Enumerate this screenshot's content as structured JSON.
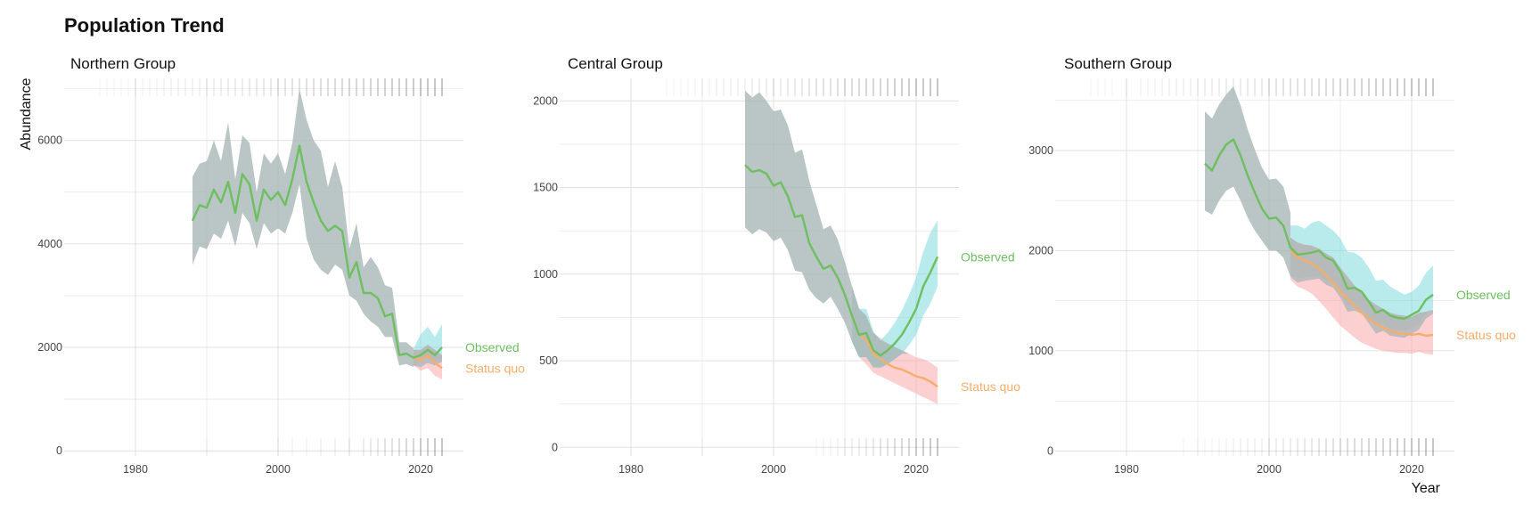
{
  "title": "Population Trend",
  "colors": {
    "observed": "#6dbf5f",
    "status_quo": "#f7ad6a",
    "observed_band": "#7fd9dd",
    "status_quo_band": "#f9aaaa",
    "common_band": "#a9b6b7",
    "grid": "#e0e0e0",
    "rug": "#555555"
  },
  "chart_data": [
    {
      "type": "area",
      "panel_title": "Northern Group",
      "ylabel": "Abundance",
      "xlabel": "",
      "xlim": [
        1970,
        2026
      ],
      "ylim": [
        -100,
        7200
      ],
      "x_ticks": [
        1980,
        2000,
        2020
      ],
      "y_ticks": [
        0,
        2000,
        4000,
        6000
      ],
      "grid": true,
      "end_labels": {
        "observed": "Observed",
        "status_quo": "Status quo"
      },
      "series": [
        {
          "name": "Observed",
          "x": [
            1988,
            1989,
            1990,
            1991,
            1992,
            1993,
            1994,
            1995,
            1996,
            1997,
            1998,
            1999,
            2000,
            2001,
            2002,
            2003,
            2004,
            2005,
            2006,
            2007,
            2008,
            2009,
            2010,
            2011,
            2012,
            2013,
            2014,
            2015,
            2016,
            2017,
            2018,
            2019,
            2020,
            2021,
            2022,
            2023
          ],
          "values": [
            4450,
            4750,
            4700,
            5050,
            4800,
            5200,
            4600,
            5350,
            5150,
            4450,
            5050,
            4850,
            5000,
            4750,
            5250,
            5900,
            5200,
            4800,
            4450,
            4250,
            4350,
            4250,
            3350,
            3650,
            3050,
            3050,
            2950,
            2600,
            2650,
            1850,
            1880,
            1800,
            1850,
            1950,
            1850,
            2000
          ],
          "lower": [
            3600,
            3950,
            3900,
            4200,
            4100,
            4450,
            3950,
            4600,
            4400,
            3900,
            4400,
            4200,
            4300,
            4200,
            4600,
            5150,
            4100,
            3700,
            3500,
            3400,
            3600,
            3500,
            3000,
            2900,
            2650,
            2500,
            2400,
            2200,
            2200,
            1650,
            1680,
            1620,
            1620,
            1700,
            1650,
            1720
          ],
          "upper": [
            5300,
            5550,
            5600,
            6000,
            5600,
            6350,
            5250,
            6100,
            5950,
            5000,
            5750,
            5550,
            5750,
            5350,
            5950,
            7000,
            6400,
            6000,
            5800,
            5100,
            5600,
            5100,
            3900,
            4400,
            3550,
            3750,
            3550,
            3200,
            3150,
            2100,
            2100,
            1980,
            2100,
            2200,
            2050,
            2300
          ]
        },
        {
          "name": "Status quo",
          "x": [
            2019,
            2020,
            2021,
            2022,
            2023
          ],
          "values": [
            1800,
            1750,
            1850,
            1700,
            1600
          ],
          "lower": [
            1650,
            1550,
            1600,
            1450,
            1380
          ],
          "upper": [
            1950,
            1950,
            2050,
            1950,
            1850
          ]
        },
        {
          "name": "Observed band",
          "x": [
            2019,
            2020,
            2021,
            2022,
            2023
          ],
          "lower": [
            1650,
            1750,
            1800,
            1700,
            1800
          ],
          "upper": [
            1980,
            2250,
            2400,
            2200,
            2450
          ]
        }
      ],
      "rug_top": [
        1975,
        1976,
        1977,
        1978,
        1979,
        1980,
        1981,
        1982,
        1983,
        1984,
        1985,
        1986,
        1987,
        1988,
        1989,
        1990,
        1991,
        1992,
        1993,
        1994,
        1995,
        1996,
        1997,
        1998,
        1999,
        2000,
        2001,
        2002,
        2003,
        2004,
        2005,
        2006,
        2007,
        2008,
        2009,
        2010,
        2011,
        2012,
        2013,
        2014,
        2015,
        2016,
        2017,
        2018,
        2019,
        2020,
        2021,
        2022,
        2023
      ],
      "rug_bottom": [
        1990,
        2000,
        2002,
        2004,
        2006,
        2008,
        2010,
        2012,
        2013,
        2014,
        2015,
        2016,
        2017,
        2018,
        2019,
        2020,
        2021,
        2022,
        2023
      ]
    },
    {
      "type": "area",
      "panel_title": "Central Group",
      "ylabel": "",
      "xlabel": "",
      "xlim": [
        1970,
        2026
      ],
      "ylim": [
        -50,
        2130
      ],
      "x_ticks": [
        1980,
        2000,
        2020
      ],
      "y_ticks": [
        0,
        500,
        1000,
        1500,
        2000
      ],
      "grid": true,
      "end_labels": {
        "observed": "Observed",
        "status_quo": "Status quo"
      },
      "series": [
        {
          "name": "Observed",
          "x": [
            1996,
            1997,
            1998,
            1999,
            2000,
            2001,
            2002,
            2003,
            2004,
            2005,
            2006,
            2007,
            2008,
            2009,
            2010,
            2011,
            2012,
            2013,
            2014,
            2015,
            2016,
            2017,
            2018,
            2019,
            2020,
            2021,
            2022,
            2023
          ],
          "values": [
            1630,
            1590,
            1600,
            1580,
            1510,
            1530,
            1450,
            1330,
            1340,
            1180,
            1100,
            1030,
            1050,
            980,
            880,
            760,
            650,
            660,
            560,
            530,
            560,
            600,
            650,
            720,
            800,
            930,
            1010,
            1100
          ],
          "lower": [
            1270,
            1230,
            1260,
            1240,
            1190,
            1210,
            1140,
            1020,
            1010,
            910,
            860,
            830,
            870,
            800,
            720,
            610,
            520,
            520,
            460,
            460,
            480,
            510,
            540,
            590,
            650,
            760,
            830,
            930
          ],
          "upper": [
            2060,
            2020,
            2050,
            2000,
            1940,
            1950,
            1860,
            1700,
            1720,
            1540,
            1400,
            1260,
            1280,
            1200,
            1070,
            930,
            800,
            800,
            670,
            620,
            660,
            720,
            790,
            880,
            980,
            1130,
            1240,
            1310
          ]
        },
        {
          "name": "Status quo",
          "x": [
            2011,
            2012,
            2013,
            2014,
            2015,
            2016,
            2017,
            2018,
            2019,
            2020,
            2021,
            2022,
            2023
          ],
          "values": [
            760,
            650,
            620,
            540,
            510,
            480,
            460,
            450,
            430,
            410,
            400,
            380,
            350
          ],
          "lower": [
            610,
            520,
            480,
            430,
            410,
            390,
            370,
            350,
            330,
            310,
            290,
            270,
            250
          ],
          "upper": [
            930,
            800,
            760,
            660,
            630,
            600,
            580,
            560,
            540,
            520,
            510,
            490,
            460
          ]
        }
      ],
      "rug_top": [
        1985,
        1986,
        1987,
        1988,
        1989,
        1990,
        1991,
        1992,
        1993,
        1994,
        1995,
        1996,
        1997,
        1998,
        1999,
        2000,
        2001,
        2002,
        2003,
        2004,
        2005,
        2006,
        2007,
        2008,
        2009,
        2010,
        2011,
        2012,
        2013,
        2014,
        2015,
        2016,
        2017,
        2018,
        2019,
        2020,
        2021,
        2022,
        2023
      ],
      "rug_bottom": [
        1990,
        2006,
        2007,
        2008,
        2009,
        2010,
        2011,
        2012,
        2013,
        2014,
        2015,
        2016,
        2017,
        2018,
        2019,
        2020,
        2021,
        2022,
        2023
      ]
    },
    {
      "type": "area",
      "panel_title": "Southern Group",
      "ylabel": "",
      "xlabel": "Year",
      "xlim": [
        1970,
        2026
      ],
      "ylim": [
        -50,
        3720
      ],
      "x_ticks": [
        1980,
        2000,
        2020
      ],
      "y_ticks": [
        0,
        1000,
        2000,
        3000
      ],
      "grid": true,
      "end_labels": {
        "observed": "Observed",
        "status_quo": "Status quo"
      },
      "series": [
        {
          "name": "Observed",
          "x": [
            1991,
            1992,
            1993,
            1994,
            1995,
            1996,
            1997,
            1998,
            1999,
            2000,
            2001,
            2002,
            2003,
            2004,
            2005,
            2006,
            2007,
            2008,
            2009,
            2010,
            2011,
            2012,
            2013,
            2014,
            2015,
            2016,
            2017,
            2018,
            2019,
            2020,
            2021,
            2022,
            2023
          ],
          "values": [
            2870,
            2800,
            2950,
            3060,
            3110,
            2950,
            2750,
            2580,
            2420,
            2320,
            2330,
            2250,
            2030,
            1960,
            1970,
            1980,
            2000,
            1930,
            1900,
            1790,
            1620,
            1630,
            1590,
            1490,
            1380,
            1410,
            1350,
            1330,
            1320,
            1360,
            1400,
            1510,
            1560
          ],
          "lower": [
            2400,
            2360,
            2500,
            2600,
            2640,
            2500,
            2330,
            2200,
            2100,
            2000,
            2000,
            1930,
            1740,
            1680,
            1700,
            1710,
            1720,
            1660,
            1630,
            1530,
            1390,
            1400,
            1370,
            1270,
            1170,
            1200,
            1150,
            1140,
            1130,
            1170,
            1210,
            1320,
            1370
          ],
          "upper": [
            3390,
            3320,
            3460,
            3560,
            3640,
            3450,
            3210,
            3010,
            2830,
            2710,
            2720,
            2640,
            2380,
            2310,
            2320,
            2340,
            2360,
            2280,
            2240,
            2110,
            1910,
            1920,
            1870,
            1760,
            1630,
            1660,
            1590,
            1560,
            1550,
            1590,
            1640,
            1770,
            1830
          ]
        },
        {
          "name": "Status quo",
          "x": [
            2003,
            2004,
            2005,
            2006,
            2007,
            2008,
            2009,
            2010,
            2011,
            2012,
            2013,
            2014,
            2015,
            2016,
            2017,
            2018,
            2019,
            2020,
            2021,
            2022,
            2023
          ],
          "values": [
            2000,
            1930,
            1900,
            1870,
            1820,
            1750,
            1680,
            1590,
            1520,
            1450,
            1380,
            1320,
            1270,
            1230,
            1200,
            1180,
            1170,
            1160,
            1170,
            1150,
            1160
          ],
          "lower": [
            1710,
            1640,
            1610,
            1570,
            1500,
            1420,
            1330,
            1250,
            1190,
            1130,
            1080,
            1050,
            1020,
            1000,
            990,
            980,
            980,
            970,
            990,
            970,
            960
          ],
          "upper": [
            2130,
            2080,
            2060,
            2050,
            2020,
            1970,
            1930,
            1830,
            1740,
            1650,
            1570,
            1510,
            1460,
            1420,
            1380,
            1360,
            1350,
            1340,
            1380,
            1390,
            1410
          ]
        },
        {
          "name": "Observed band",
          "x": [
            2003,
            2004,
            2005,
            2006,
            2007,
            2008,
            2009,
            2010,
            2011,
            2012,
            2013,
            2014,
            2015,
            2016,
            2017,
            2018,
            2019,
            2020,
            2021,
            2022,
            2023
          ],
          "lower": [
            1760,
            1720,
            1740,
            1740,
            1750,
            1700,
            1680,
            1580,
            1450,
            1450,
            1410,
            1330,
            1250,
            1270,
            1220,
            1210,
            1200,
            1230,
            1270,
            1370,
            1420
          ],
          "upper": [
            2250,
            2250,
            2220,
            2280,
            2300,
            2250,
            2200,
            2120,
            1990,
            1980,
            1930,
            1830,
            1700,
            1710,
            1640,
            1600,
            1560,
            1590,
            1650,
            1780,
            1850
          ]
        }
      ],
      "rug_top": [
        1975,
        1976,
        1977,
        1978,
        1980,
        1982,
        1983,
        1984,
        1985,
        1986,
        1987,
        1988,
        1989,
        1990,
        1991,
        1992,
        1993,
        1994,
        1995,
        1996,
        1997,
        1998,
        1999,
        2000,
        2001,
        2002,
        2003,
        2004,
        2005,
        2006,
        2007,
        2008,
        2009,
        2010,
        2011,
        2012,
        2013,
        2014,
        2015,
        2016,
        2017,
        2018,
        2019,
        2020,
        2021,
        2022,
        2023
      ],
      "rug_bottom": [
        1988,
        1990,
        1991,
        1992,
        1993,
        1994,
        1995,
        1996,
        1997,
        1998,
        1999,
        2000,
        2001,
        2002,
        2003,
        2004,
        2005,
        2006,
        2007,
        2008,
        2009,
        2010,
        2011,
        2012,
        2013,
        2014,
        2015,
        2016,
        2017,
        2018,
        2019,
        2020,
        2021,
        2022,
        2023
      ]
    }
  ]
}
